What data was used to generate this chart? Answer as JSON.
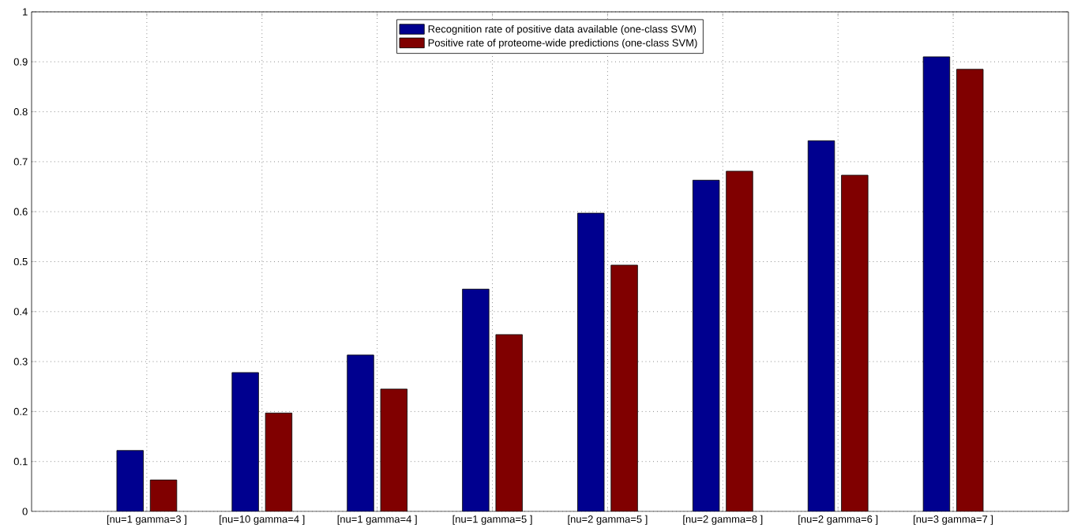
{
  "chart_data": {
    "type": "bar",
    "categories": [
      "[nu=1 gamma=3 ]",
      "[nu=10 gamma=4 ]",
      "[nu=1 gamma=4 ]",
      "[nu=1 gamma=5 ]",
      "[nu=2 gamma=5 ]",
      "[nu=2 gamma=8 ]",
      "[nu=2 gamma=6 ]",
      "[nu=3 gamma=7 ]"
    ],
    "series": [
      {
        "name": "Recognition rate of positive data available (one-class SVM)",
        "color": "#00008f",
        "values": [
          0.122,
          0.278,
          0.313,
          0.445,
          0.597,
          0.663,
          0.742,
          0.91
        ]
      },
      {
        "name": "Positive rate of proteome-wide predictions (one-class SVM)",
        "color": "#800000",
        "values": [
          0.063,
          0.197,
          0.245,
          0.354,
          0.493,
          0.681,
          0.673,
          0.885
        ]
      }
    ],
    "ylim": [
      0,
      1
    ],
    "yticks": [
      0,
      0.1,
      0.2,
      0.3,
      0.4,
      0.5,
      0.6,
      0.7,
      0.8,
      0.9,
      1
    ],
    "grid": true,
    "legend": "top"
  }
}
